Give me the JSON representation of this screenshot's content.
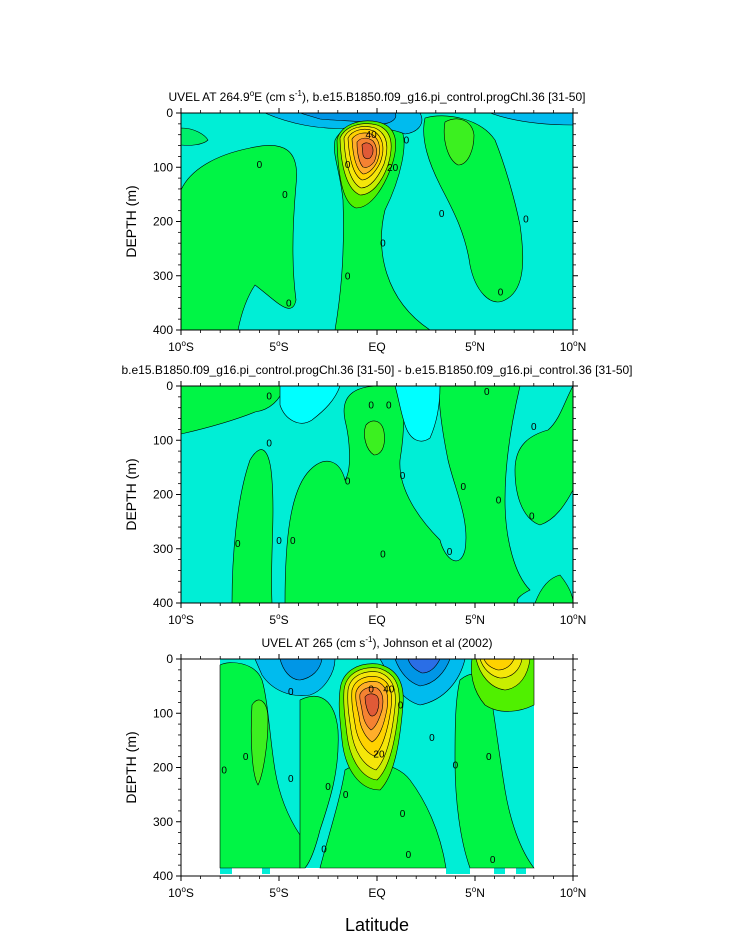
{
  "chart_data": [
    {
      "type": "contour",
      "title_parts": [
        "UVEL AT 264.9",
        "o",
        "E (cm s",
        "-1",
        "), b.e15.B1850.f09_g16.pi_control.progChl.36 [31-50]"
      ],
      "ylabel": "DEPTH (m)",
      "xlabel": "",
      "xlim": [
        -10,
        10
      ],
      "ylim": [
        400,
        0
      ],
      "xticks": [
        [
          "10",
          "o",
          "S"
        ],
        [
          "5",
          "o",
          "S"
        ],
        [
          "EQ",
          "",
          ""
        ],
        [
          "5",
          "o",
          "N"
        ],
        [
          "10",
          "o",
          "N"
        ]
      ],
      "yticks": [
        "0",
        "100",
        "200",
        "300",
        "400"
      ],
      "contour_labels": [
        {
          "text": "40",
          "lat": -0.3,
          "depth": 40
        },
        {
          "text": "20",
          "lat": 0.8,
          "depth": 100
        },
        {
          "text": "0",
          "lat": -6.0,
          "depth": 95
        },
        {
          "text": "0",
          "lat": -4.7,
          "depth": 150
        },
        {
          "text": "0",
          "lat": -4.5,
          "depth": 350
        },
        {
          "text": "0",
          "lat": -1.5,
          "depth": 95
        },
        {
          "text": "0",
          "lat": 1.5,
          "depth": 50
        },
        {
          "text": "0",
          "lat": 0.3,
          "depth": 240
        },
        {
          "text": "0",
          "lat": -1.5,
          "depth": 300
        },
        {
          "text": "0",
          "lat": 3.3,
          "depth": 185
        },
        {
          "text": "0",
          "lat": 6.3,
          "depth": 330
        },
        {
          "text": "0",
          "lat": 7.6,
          "depth": 195
        }
      ]
    },
    {
      "type": "contour",
      "title_parts": [
        "b.e15.B1850.f09_g16.pi_control.progChl.36 [31-50] - b.e15.B1850.f09_g16.pi_control.36 [31-50]"
      ],
      "ylabel": "DEPTH (m)",
      "xlabel": "",
      "xlim": [
        -10,
        10
      ],
      "ylim": [
        400,
        0
      ],
      "xticks": [
        [
          "10",
          "o",
          "S"
        ],
        [
          "5",
          "o",
          "S"
        ],
        [
          "EQ",
          "",
          ""
        ],
        [
          "5",
          "o",
          "N"
        ],
        [
          "10",
          "o",
          "N"
        ]
      ],
      "yticks": [
        "0",
        "100",
        "200",
        "300",
        "400"
      ],
      "contour_labels": [
        {
          "text": "0",
          "lat": -5.5,
          "depth": 18
        },
        {
          "text": "0",
          "lat": -5.5,
          "depth": 105
        },
        {
          "text": "0",
          "lat": -7.1,
          "depth": 290
        },
        {
          "text": "0",
          "lat": -5.0,
          "depth": 285
        },
        {
          "text": "0",
          "lat": -4.3,
          "depth": 285
        },
        {
          "text": "0",
          "lat": -1.5,
          "depth": 175
        },
        {
          "text": "0",
          "lat": -0.3,
          "depth": 35
        },
        {
          "text": "0",
          "lat": 0.6,
          "depth": 35
        },
        {
          "text": "0",
          "lat": 0.3,
          "depth": 310
        },
        {
          "text": "0",
          "lat": 1.3,
          "depth": 165
        },
        {
          "text": "0",
          "lat": 4.4,
          "depth": 185
        },
        {
          "text": "0",
          "lat": 3.7,
          "depth": 305
        },
        {
          "text": "0",
          "lat": 5.6,
          "depth": 10
        },
        {
          "text": "0",
          "lat": 6.2,
          "depth": 210
        },
        {
          "text": "0",
          "lat": 8.0,
          "depth": 75
        },
        {
          "text": "0",
          "lat": 7.9,
          "depth": 240
        }
      ]
    },
    {
      "type": "contour",
      "title_parts": [
        "UVEL AT 265 (cm s",
        "-1",
        "), Johnson et al (2002)"
      ],
      "ylabel": "DEPTH (m)",
      "xlabel": "Latitude",
      "xlim": [
        -10,
        10
      ],
      "ylim": [
        400,
        0
      ],
      "data_extent_lat": [
        -8,
        8
      ],
      "xticks": [
        [
          "10",
          "o",
          "S"
        ],
        [
          "5",
          "o",
          "S"
        ],
        [
          "EQ",
          "",
          ""
        ],
        [
          "5",
          "o",
          "N"
        ],
        [
          "10",
          "o",
          "N"
        ]
      ],
      "yticks": [
        "0",
        "100",
        "200",
        "300",
        "400"
      ],
      "contour_labels": [
        {
          "text": "40",
          "lat": 0.6,
          "depth": 55
        },
        {
          "text": "0",
          "lat": -0.3,
          "depth": 55
        },
        {
          "text": "20",
          "lat": 0.1,
          "depth": 175
        },
        {
          "text": "0",
          "lat": -4.4,
          "depth": 60
        },
        {
          "text": "0",
          "lat": -6.7,
          "depth": 180
        },
        {
          "text": "0",
          "lat": -7.8,
          "depth": 205
        },
        {
          "text": "0",
          "lat": -4.4,
          "depth": 220
        },
        {
          "text": "0",
          "lat": -2.5,
          "depth": 235
        },
        {
          "text": "0",
          "lat": -2.7,
          "depth": 350
        },
        {
          "text": "0",
          "lat": -1.6,
          "depth": 250
        },
        {
          "text": "0",
          "lat": 1.2,
          "depth": 85
        },
        {
          "text": "0",
          "lat": 2.8,
          "depth": 145
        },
        {
          "text": "0",
          "lat": 1.3,
          "depth": 285
        },
        {
          "text": "0",
          "lat": 1.6,
          "depth": 360
        },
        {
          "text": "0",
          "lat": 4.0,
          "depth": 195
        },
        {
          "text": "0",
          "lat": 5.7,
          "depth": 180
        },
        {
          "text": "0",
          "lat": 5.9,
          "depth": 370
        }
      ]
    }
  ]
}
